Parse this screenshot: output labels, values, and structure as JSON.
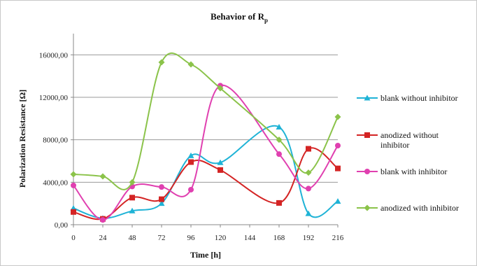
{
  "chart_data": {
    "type": "line",
    "title": "Behavior of R",
    "title_subscript": "p",
    "xlabel": "Time [h]",
    "ylabel": "Polarization Resistance [Ω]",
    "x": [
      0,
      24,
      48,
      72,
      96,
      120,
      168,
      192,
      216
    ],
    "x_ticks": [
      "0",
      "24",
      "48",
      "72",
      "96",
      "120",
      "144",
      "168",
      "192",
      "216"
    ],
    "y_ticks": [
      "0,00",
      "4000,00",
      "8000,00",
      "12000,00",
      "16000,00"
    ],
    "ylim": [
      0,
      18000
    ],
    "xlim": [
      0,
      216
    ],
    "grid": "horizontal",
    "legend_position": "right",
    "series": [
      {
        "name": "blank without inhibitor",
        "color": "#1fb3d6",
        "marker": "triangle",
        "values": [
          1550,
          600,
          1300,
          2000,
          6500,
          5850,
          9200,
          1050,
          2200
        ]
      },
      {
        "name": "anodized without inhibitor",
        "color": "#d42424",
        "marker": "square",
        "values": [
          1200,
          550,
          2550,
          2400,
          5900,
          5150,
          2050,
          7150,
          5300
        ]
      },
      {
        "name": "blank with inhibitor",
        "color": "#e040b0",
        "marker": "circle",
        "values": [
          3700,
          450,
          3600,
          3550,
          3300,
          13100,
          6650,
          3400,
          7450
        ]
      },
      {
        "name": "anodized with inhibitor",
        "color": "#8bc34a",
        "marker": "diamond",
        "values": [
          4750,
          4550,
          4000,
          15300,
          15100,
          12850,
          8000,
          4900,
          10150
        ]
      }
    ]
  }
}
